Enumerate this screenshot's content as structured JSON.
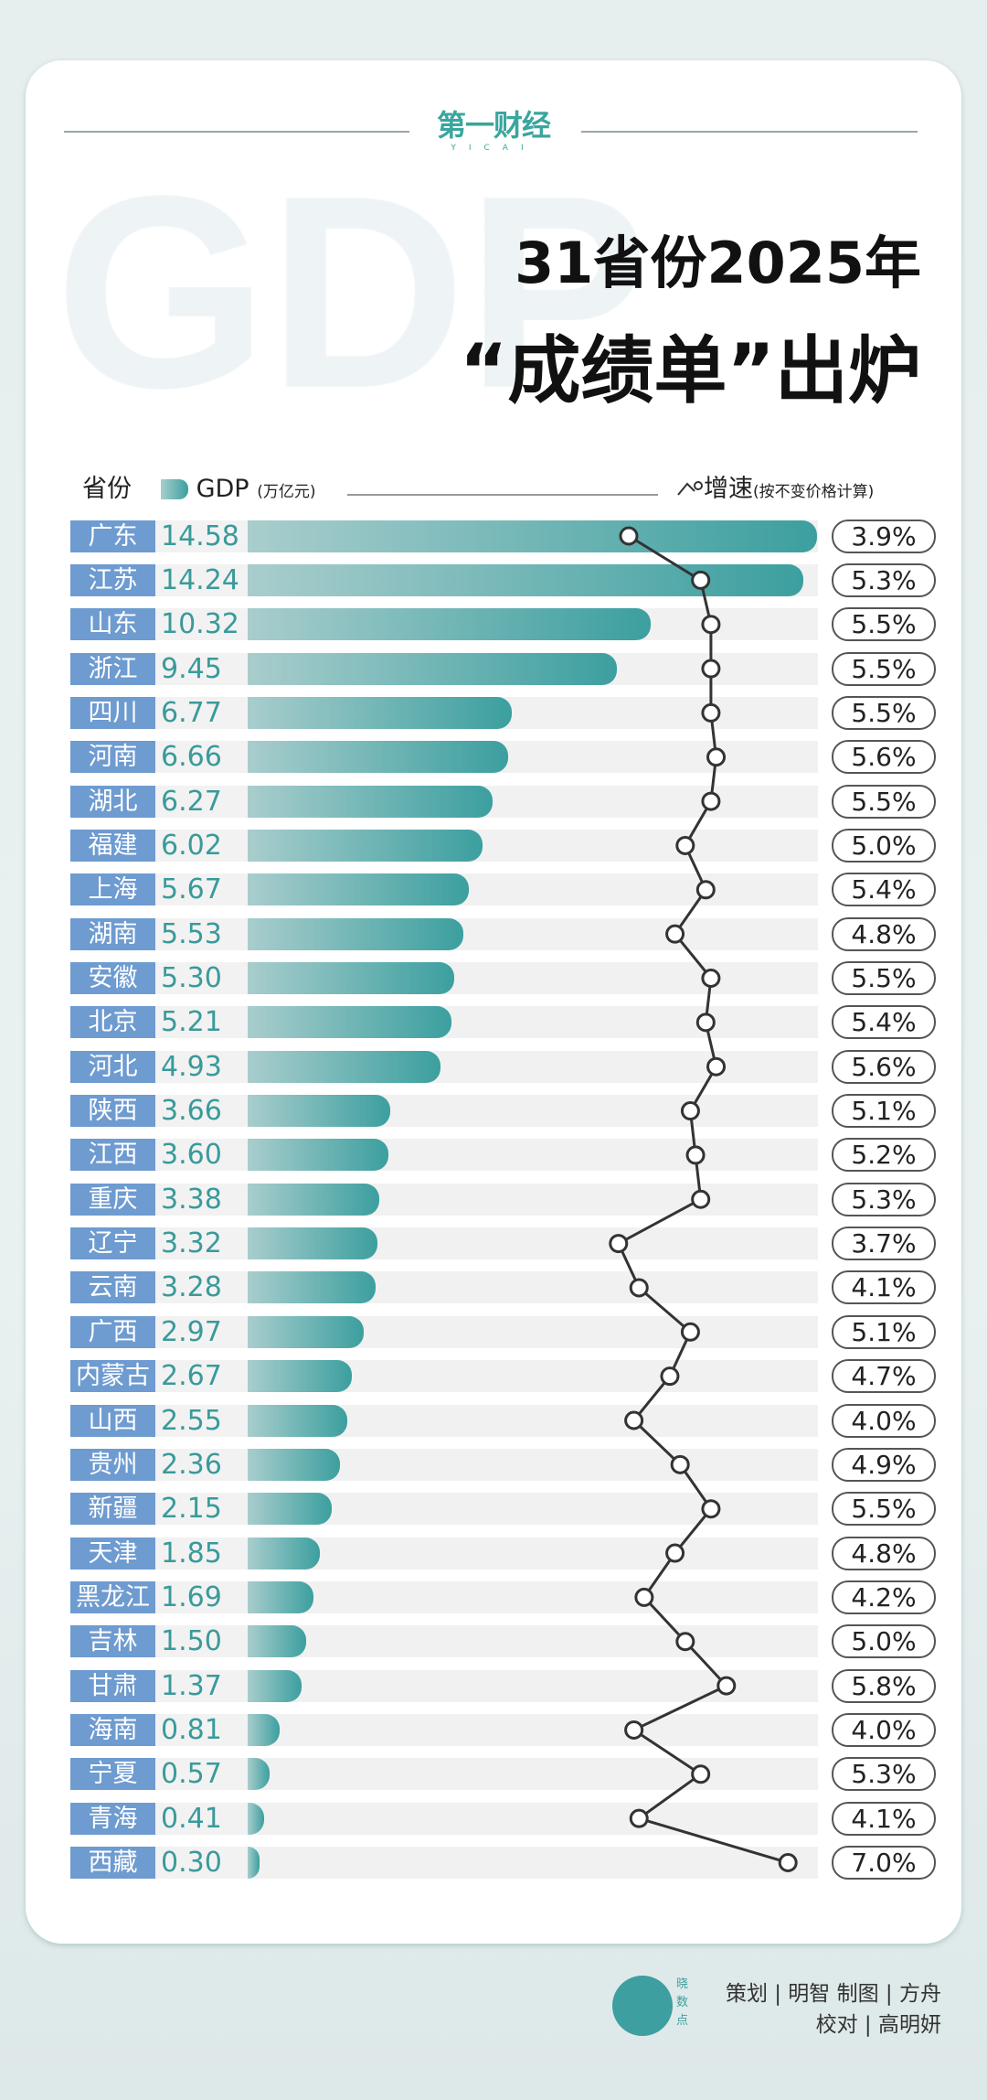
{
  "brand": {
    "logo": "第一财经",
    "logo_sub": "YICAI",
    "watermark": "GDP"
  },
  "title": {
    "line1": "31省份2025年",
    "line2": "“成绩单”出炉"
  },
  "legend": {
    "province": "省份",
    "gdp": "GDP",
    "gdp_unit": "(万亿元)",
    "growth": "增速",
    "growth_note": "(按不变价格计算)"
  },
  "chart_data": {
    "type": "bar+line",
    "categories": [
      "广东",
      "江苏",
      "山东",
      "浙江",
      "四川",
      "河南",
      "湖北",
      "福建",
      "上海",
      "湖南",
      "安徽",
      "北京",
      "河北",
      "陕西",
      "江西",
      "重庆",
      "辽宁",
      "云南",
      "广西",
      "内蒙古",
      "山西",
      "贵州",
      "新疆",
      "天津",
      "黑龙江",
      "吉林",
      "甘肃",
      "海南",
      "宁夏",
      "青海",
      "西藏"
    ],
    "series": [
      {
        "name": "GDP",
        "unit": "万亿元",
        "values": [
          14.58,
          14.24,
          10.32,
          9.45,
          6.77,
          6.66,
          6.27,
          6.02,
          5.67,
          5.53,
          5.3,
          5.21,
          4.93,
          3.66,
          3.6,
          3.38,
          3.32,
          3.28,
          2.97,
          2.67,
          2.55,
          2.36,
          2.15,
          1.85,
          1.69,
          1.5,
          1.37,
          0.81,
          0.57,
          0.41,
          0.3
        ],
        "labels": [
          "14.58",
          "14.24",
          "10.32",
          "9.45",
          "6.77",
          "6.66",
          "6.27",
          "6.02",
          "5.67",
          "5.53",
          "5.30",
          "5.21",
          "4.93",
          "3.66",
          "3.60",
          "3.38",
          "3.32",
          "3.28",
          "2.97",
          "2.67",
          "2.55",
          "2.36",
          "2.15",
          "1.85",
          "1.69",
          "1.50",
          "1.37",
          "0.81",
          "0.57",
          "0.41",
          "0.30"
        ]
      },
      {
        "name": "增速",
        "unit": "%",
        "values": [
          3.9,
          5.3,
          5.5,
          5.5,
          5.5,
          5.6,
          5.5,
          5.0,
          5.4,
          4.8,
          5.5,
          5.4,
          5.6,
          5.1,
          5.2,
          5.3,
          3.7,
          4.1,
          5.1,
          4.7,
          4.0,
          4.9,
          5.5,
          4.8,
          4.2,
          5.0,
          5.8,
          4.0,
          5.3,
          4.1,
          7.0
        ],
        "labels": [
          "3.9%",
          "5.3%",
          "5.5%",
          "5.5%",
          "5.5%",
          "5.6%",
          "5.5%",
          "5.0%",
          "5.4%",
          "4.8%",
          "5.5%",
          "5.4%",
          "5.6%",
          "5.1%",
          "5.2%",
          "5.3%",
          "3.7%",
          "4.1%",
          "5.1%",
          "4.7%",
          "4.0%",
          "4.9%",
          "5.5%",
          "4.8%",
          "4.2%",
          "5.0%",
          "5.8%",
          "4.0%",
          "5.3%",
          "4.1%",
          "7.0%"
        ]
      }
    ],
    "colors": {
      "province_label": "#6e9bd0",
      "bar": "#3c9f9f",
      "value_text": "#3a9a9a"
    }
  },
  "footer": {
    "logo_text": "晓数点",
    "credits1": "策划 | 明智  制图 | 方舟",
    "credits2": "校对 | 高明妍"
  }
}
